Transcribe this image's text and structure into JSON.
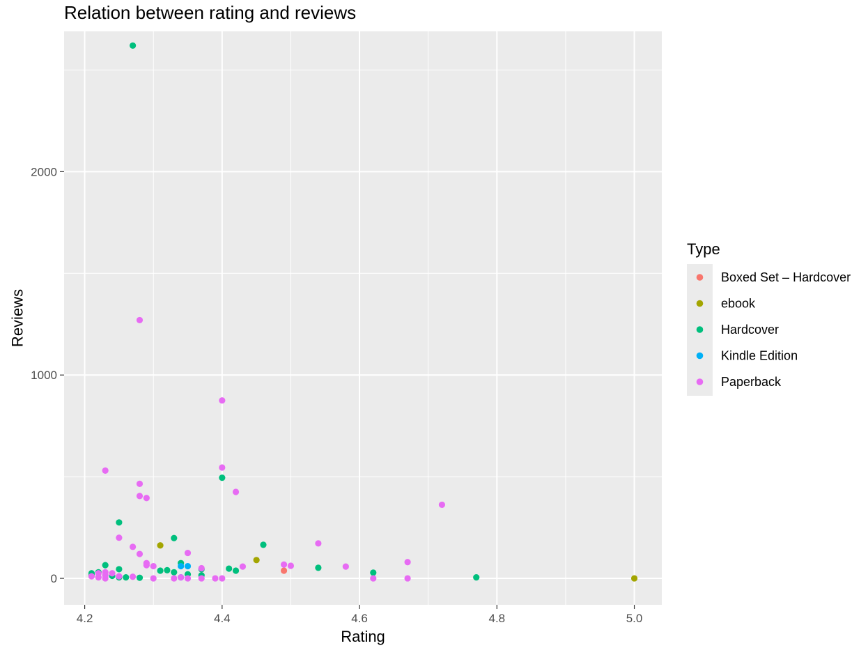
{
  "chart_data": {
    "type": "scatter",
    "title": "Relation between rating and reviews",
    "xlabel": "Rating",
    "ylabel": "Reviews",
    "xlim": [
      4.17,
      5.04
    ],
    "ylim": [
      -130,
      2690
    ],
    "x_ticks": [
      4.2,
      4.4,
      4.6,
      4.8,
      5.0
    ],
    "x_tick_labels": [
      "4.2",
      "4.4",
      "4.6",
      "4.8",
      "5.0"
    ],
    "y_ticks": [
      0,
      1000,
      2000
    ],
    "y_tick_labels": [
      "0",
      "1000",
      "2000"
    ],
    "grid": true,
    "legend": {
      "title": "Type",
      "position": "right"
    },
    "series": [
      {
        "name": "Boxed Set – Hardcover",
        "color": "#F8766D",
        "points": [
          [
            4.49,
            38
          ]
        ]
      },
      {
        "name": "ebook",
        "color": "#A3A500",
        "points": [
          [
            4.31,
            162
          ],
          [
            4.45,
            90
          ],
          [
            5.0,
            0
          ]
        ]
      },
      {
        "name": "Hardcover",
        "color": "#00BF7D",
        "points": [
          [
            4.27,
            2620
          ],
          [
            4.21,
            25
          ],
          [
            4.21,
            15
          ],
          [
            4.22,
            30
          ],
          [
            4.23,
            65
          ],
          [
            4.24,
            12
          ],
          [
            4.25,
            275
          ],
          [
            4.25,
            45
          ],
          [
            4.25,
            5
          ],
          [
            4.26,
            5
          ],
          [
            4.28,
            3
          ],
          [
            4.31,
            38
          ],
          [
            4.32,
            40
          ],
          [
            4.33,
            198
          ],
          [
            4.33,
            30
          ],
          [
            4.34,
            75
          ],
          [
            4.35,
            20
          ],
          [
            4.37,
            45
          ],
          [
            4.37,
            15
          ],
          [
            4.4,
            495
          ],
          [
            4.41,
            48
          ],
          [
            4.42,
            38
          ],
          [
            4.46,
            165
          ],
          [
            4.54,
            52
          ],
          [
            4.62,
            28
          ],
          [
            4.77,
            5
          ]
        ]
      },
      {
        "name": "Kindle Edition",
        "color": "#00B0F6",
        "points": [
          [
            4.34,
            60
          ],
          [
            4.34,
            5
          ],
          [
            4.35,
            60
          ]
        ]
      },
      {
        "name": "Paperback",
        "color": "#E76BF3",
        "points": [
          [
            4.28,
            1270
          ],
          [
            4.4,
            875
          ],
          [
            4.4,
            545
          ],
          [
            4.23,
            530
          ],
          [
            4.28,
            465
          ],
          [
            4.28,
            405
          ],
          [
            4.29,
            395
          ],
          [
            4.42,
            425
          ],
          [
            4.72,
            362
          ],
          [
            4.25,
            200
          ],
          [
            4.27,
            155
          ],
          [
            4.28,
            120
          ],
          [
            4.29,
            75
          ],
          [
            4.29,
            65
          ],
          [
            4.3,
            60
          ],
          [
            4.3,
            0
          ],
          [
            4.21,
            10
          ],
          [
            4.22,
            25
          ],
          [
            4.22,
            5
          ],
          [
            4.23,
            30
          ],
          [
            4.23,
            15
          ],
          [
            4.23,
            0
          ],
          [
            4.24,
            25
          ],
          [
            4.25,
            10
          ],
          [
            4.27,
            8
          ],
          [
            4.33,
            0
          ],
          [
            4.34,
            5
          ],
          [
            4.35,
            125
          ],
          [
            4.35,
            0
          ],
          [
            4.37,
            50
          ],
          [
            4.37,
            0
          ],
          [
            4.39,
            0
          ],
          [
            4.4,
            0
          ],
          [
            4.43,
            58
          ],
          [
            4.49,
            68
          ],
          [
            4.5,
            62
          ],
          [
            4.54,
            172
          ],
          [
            4.58,
            58
          ],
          [
            4.62,
            0
          ],
          [
            4.67,
            80
          ],
          [
            4.67,
            0
          ]
        ]
      }
    ]
  }
}
